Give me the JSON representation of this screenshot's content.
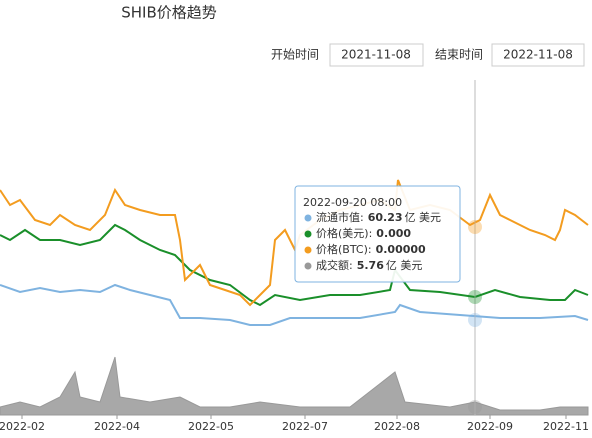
{
  "chart_data": {
    "type": "line",
    "title": "SHIB价格趋势",
    "xlim": [
      0,
      588
    ],
    "ylim": [
      0,
      315
    ],
    "xticks": [
      {
        "value": 22,
        "label": "2022-02"
      },
      {
        "value": 117,
        "label": "2022-04"
      },
      {
        "value": 211,
        "label": "2022-05"
      },
      {
        "value": 305,
        "label": "2022-07"
      },
      {
        "value": 397,
        "label": "2022-08"
      },
      {
        "value": 490,
        "label": "2022-09"
      },
      {
        "value": 566,
        "label": "2022-11"
      }
    ],
    "series": [
      {
        "type": "line",
        "color": "#7fb3e0",
        "x": [
          0,
          20,
          40,
          60,
          80,
          100,
          115,
          130,
          150,
          170,
          180,
          200,
          230,
          250,
          270,
          290,
          320,
          360,
          395,
          400,
          420,
          460,
          500,
          540,
          575,
          588
        ],
        "values": [
          130,
          123,
          127,
          123,
          125,
          123,
          130,
          125,
          120,
          115,
          97,
          97,
          95,
          90,
          90,
          97,
          97,
          97,
          103,
          110,
          103,
          100,
          97,
          97,
          99,
          95
        ]
      },
      {
        "type": "line",
        "color": "#1a8f2a",
        "x": [
          0,
          10,
          25,
          40,
          60,
          80,
          100,
          115,
          125,
          140,
          160,
          175,
          190,
          210,
          230,
          250,
          260,
          275,
          300,
          330,
          360,
          390,
          395,
          410,
          440,
          475,
          495,
          520,
          550,
          565,
          575,
          588
        ],
        "values": [
          180,
          175,
          185,
          175,
          175,
          170,
          175,
          190,
          185,
          175,
          165,
          160,
          145,
          135,
          130,
          115,
          110,
          120,
          115,
          120,
          120,
          125,
          145,
          125,
          123,
          118,
          125,
          118,
          115,
          115,
          125,
          120
        ]
      },
      {
        "type": "line",
        "color": "#f39c1f",
        "x": [
          0,
          10,
          20,
          35,
          50,
          60,
          75,
          90,
          105,
          115,
          125,
          140,
          160,
          175,
          180,
          185,
          200,
          210,
          225,
          240,
          250,
          260,
          270,
          275,
          285,
          295,
          300,
          320,
          340,
          360,
          380,
          395,
          398,
          410,
          430,
          450,
          470,
          480,
          490,
          500,
          510,
          530,
          545,
          555,
          560,
          565,
          575,
          588
        ],
        "values": [
          225,
          210,
          215,
          195,
          190,
          200,
          190,
          185,
          200,
          225,
          210,
          205,
          200,
          200,
          175,
          135,
          150,
          130,
          125,
          120,
          110,
          120,
          130,
          175,
          185,
          165,
          180,
          195,
          205,
          210,
          215,
          205,
          235,
          205,
          210,
          205,
          190,
          195,
          220,
          200,
          195,
          185,
          180,
          175,
          185,
          205,
          200,
          190
        ]
      },
      {
        "type": "area",
        "color": "#999999",
        "x": [
          0,
          20,
          40,
          60,
          75,
          80,
          100,
          115,
          120,
          150,
          180,
          200,
          230,
          260,
          300,
          350,
          395,
          405,
          450,
          475,
          500,
          540,
          560,
          588
        ],
        "values": [
          8,
          13,
          8,
          18,
          43,
          18,
          13,
          58,
          18,
          13,
          18,
          8,
          8,
          13,
          8,
          8,
          43,
          13,
          8,
          13,
          5,
          5,
          8,
          8
        ]
      }
    ]
  },
  "controls": {
    "start_label": "开始时间",
    "start_date": "2021-11-08",
    "end_label": "结束时间",
    "end_date": "2022-11-08"
  },
  "tooltip": {
    "title": "2022-09-20 08:00",
    "rows": [
      {
        "label": "流通市值:",
        "value": "60.23",
        "unit": "亿 美元"
      },
      {
        "label": "价格(美元):",
        "value": "0.000"
      },
      {
        "label": "价格(BTC):",
        "value": "0.00000"
      },
      {
        "label": "成交额:",
        "value": "5.76",
        "unit": "亿 美元"
      }
    ]
  }
}
